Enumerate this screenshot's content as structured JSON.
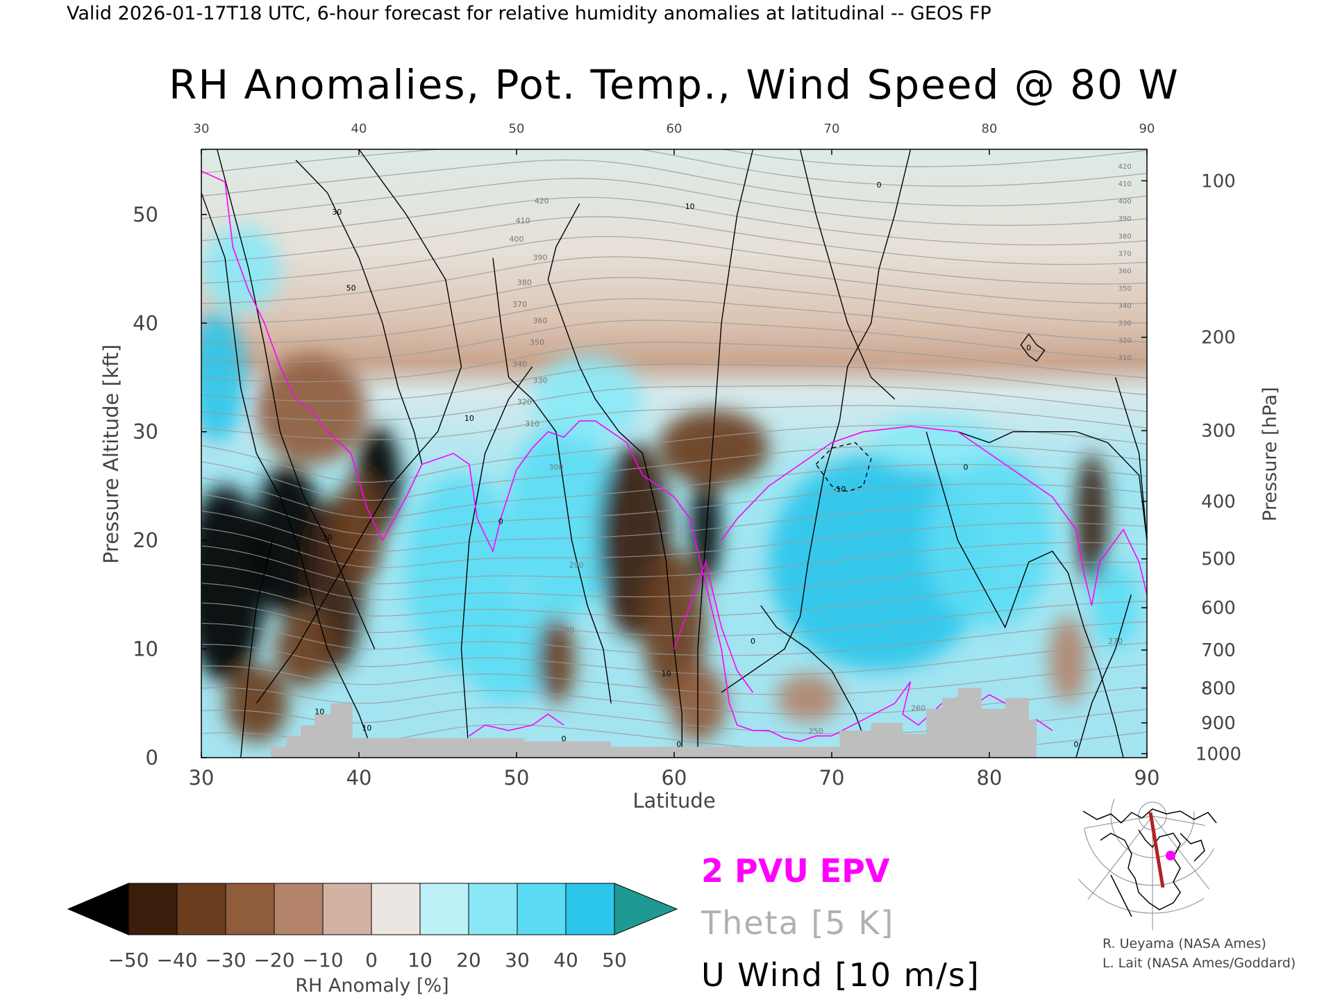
{
  "header": "Valid 2026-01-17T18 UTC, 6-hour forecast for relative humidity anomalies at latitudinal -- GEOS FP",
  "chart_data": {
    "type": "heatmap",
    "title": "RH Anomalies, Pot. Temp., Wind Speed @ 80 W",
    "xlabel": "Latitude",
    "ylabel_left": "Pressure Altitude [kft]",
    "ylabel_right": "Pressure [hPa]",
    "xlim": [
      30,
      90
    ],
    "ylim": [
      0,
      56
    ],
    "x_ticks": [
      "30",
      "40",
      "50",
      "60",
      "70",
      "80",
      "90"
    ],
    "y_ticks": [
      "0",
      "10",
      "20",
      "30",
      "40",
      "50"
    ],
    "y_tick_values": [
      0,
      10,
      20,
      30,
      40,
      50
    ],
    "pressure_ticks": [
      {
        "label": "100",
        "kft": 53.1
      },
      {
        "label": "200",
        "kft": 38.7
      },
      {
        "label": "300",
        "kft": 30.1
      },
      {
        "label": "400",
        "kft": 23.6
      },
      {
        "label": "500",
        "kft": 18.3
      },
      {
        "label": "600",
        "kft": 13.8
      },
      {
        "label": "700",
        "kft": 9.9
      },
      {
        "label": "800",
        "kft": 6.4
      },
      {
        "label": "900",
        "kft": 3.2
      },
      {
        "label": "1000",
        "kft": 0.36
      }
    ],
    "rh_blobs": [
      {
        "lat": 31.5,
        "kft": 16.0,
        "rlat": 2.6,
        "rk": 9.0,
        "v": -55
      },
      {
        "lat": 35.5,
        "kft": 20.0,
        "rlat": 2.2,
        "rk": 7.0,
        "v": -52
      },
      {
        "lat": 38.5,
        "kft": 16.0,
        "rlat": 1.8,
        "rk": 8.0,
        "v": -45
      },
      {
        "lat": 41.2,
        "kft": 25.5,
        "rlat": 1.4,
        "rk": 5.0,
        "v": -58
      },
      {
        "lat": 40.0,
        "kft": 21.0,
        "rlat": 1.6,
        "rk": 5.0,
        "v": -40
      },
      {
        "lat": 36.5,
        "kft": 10.0,
        "rlat": 1.8,
        "rk": 3.5,
        "v": -40
      },
      {
        "lat": 33.5,
        "kft": 5.0,
        "rlat": 2.0,
        "rk": 3.5,
        "v": -35
      },
      {
        "lat": 37.0,
        "kft": 32.0,
        "rlat": 3.5,
        "rk": 5.0,
        "v": -25
      },
      {
        "lat": 31.0,
        "kft": 35.0,
        "rlat": 1.8,
        "rk": 6.0,
        "v": 45
      },
      {
        "lat": 32.5,
        "kft": 45.0,
        "rlat": 2.5,
        "rk": 4.0,
        "v": 25
      },
      {
        "lat": 46.5,
        "kft": 17.0,
        "rlat": 3.5,
        "rk": 9.0,
        "v": 35
      },
      {
        "lat": 53.0,
        "kft": 22.0,
        "rlat": 3.5,
        "rk": 9.0,
        "v": 38
      },
      {
        "lat": 49.5,
        "kft": 10.0,
        "rlat": 3.0,
        "rk": 5.0,
        "v": 30
      },
      {
        "lat": 54.5,
        "kft": 33.0,
        "rlat": 3.5,
        "rk": 4.0,
        "v": 28
      },
      {
        "lat": 52.5,
        "kft": 9.0,
        "rlat": 1.2,
        "rk": 4.0,
        "v": -40
      },
      {
        "lat": 57.5,
        "kft": 20.0,
        "rlat": 2.3,
        "rk": 9.0,
        "v": -45
      },
      {
        "lat": 60.0,
        "kft": 12.0,
        "rlat": 2.0,
        "rk": 7.0,
        "v": -40
      },
      {
        "lat": 62.0,
        "kft": 21.0,
        "rlat": 0.9,
        "rk": 5.0,
        "v": -58
      },
      {
        "lat": 62.5,
        "kft": 28.5,
        "rlat": 3.5,
        "rk": 3.5,
        "v": -35
      },
      {
        "lat": 61.5,
        "kft": 5.0,
        "rlat": 1.8,
        "rk": 3.5,
        "v": -30
      },
      {
        "lat": 73.0,
        "kft": 18.0,
        "rlat": 7.0,
        "rk": 10.0,
        "v": 40
      },
      {
        "lat": 80.0,
        "kft": 20.0,
        "rlat": 4.0,
        "rk": 8.0,
        "v": 38
      },
      {
        "lat": 76.5,
        "kft": 29.0,
        "rlat": 4.0,
        "rk": 2.5,
        "v": 25
      },
      {
        "lat": 68.5,
        "kft": 5.5,
        "rlat": 2.0,
        "rk": 2.2,
        "v": -20
      },
      {
        "lat": 86.5,
        "kft": 22.0,
        "rlat": 1.0,
        "rk": 6.0,
        "v": -42
      },
      {
        "lat": 88.0,
        "kft": 14.0,
        "rlat": 1.5,
        "rk": 4.0,
        "v": 35
      },
      {
        "lat": 85.0,
        "kft": 9.0,
        "rlat": 1.2,
        "rk": 4.0,
        "v": -20
      }
    ],
    "terrain": [
      [
        30,
        0
      ],
      [
        34.4,
        0
      ],
      [
        34.4,
        1
      ],
      [
        35.4,
        1
      ],
      [
        35.4,
        2
      ],
      [
        36.3,
        2
      ],
      [
        36.3,
        3
      ],
      [
        37.2,
        3
      ],
      [
        37.2,
        4
      ],
      [
        38.2,
        4
      ],
      [
        38.2,
        5
      ],
      [
        39.6,
        5
      ],
      [
        39.6,
        1.8
      ],
      [
        50.5,
        1.8
      ],
      [
        50.5,
        1.5
      ],
      [
        56.0,
        1.5
      ],
      [
        56.0,
        1.0
      ],
      [
        70.5,
        1.0
      ],
      [
        70.5,
        2.5
      ],
      [
        72.5,
        2.5
      ],
      [
        72.5,
        3.2
      ],
      [
        74.5,
        3.2
      ],
      [
        74.5,
        2.2
      ],
      [
        76.0,
        2.2
      ],
      [
        76.0,
        4.5
      ],
      [
        77.0,
        4.5
      ],
      [
        77.0,
        5.5
      ],
      [
        78.0,
        5.5
      ],
      [
        78.0,
        6.4
      ],
      [
        79.5,
        6.4
      ],
      [
        79.5,
        4.5
      ],
      [
        81.0,
        4.5
      ],
      [
        81.0,
        5.5
      ],
      [
        82.5,
        5.5
      ],
      [
        82.5,
        3.5
      ],
      [
        83.0,
        3.5
      ],
      [
        83.0,
        0
      ],
      [
        90,
        0
      ]
    ],
    "theta_contour_labels": [
      {
        "text": "420",
        "lat": 51.6,
        "kft": 51.0
      },
      {
        "text": "410",
        "lat": 50.4,
        "kft": 49.2
      },
      {
        "text": "400",
        "lat": 50.0,
        "kft": 47.5
      },
      {
        "text": "390",
        "lat": 51.5,
        "kft": 45.8
      },
      {
        "text": "380",
        "lat": 50.5,
        "kft": 43.5
      },
      {
        "text": "370",
        "lat": 50.2,
        "kft": 41.5
      },
      {
        "text": "360",
        "lat": 51.5,
        "kft": 40.0
      },
      {
        "text": "350",
        "lat": 51.3,
        "kft": 38.0
      },
      {
        "text": "340",
        "lat": 50.2,
        "kft": 36.0
      },
      {
        "text": "330",
        "lat": 51.5,
        "kft": 34.5
      },
      {
        "text": "320",
        "lat": 50.5,
        "kft": 32.5
      },
      {
        "text": "310",
        "lat": 51.0,
        "kft": 30.5
      },
      {
        "text": "300",
        "lat": 52.5,
        "kft": 26.5
      },
      {
        "text": "290",
        "lat": 53.8,
        "kft": 17.5
      },
      {
        "text": "280",
        "lat": 53.2,
        "kft": 11.5
      },
      {
        "text": "270",
        "lat": 88.0,
        "kft": 10.5
      },
      {
        "text": "260",
        "lat": 75.5,
        "kft": 4.3
      },
      {
        "text": "250",
        "lat": 69.0,
        "kft": 2.2
      }
    ],
    "theta_right_labels": [
      "420",
      "410",
      "400",
      "390",
      "380",
      "370",
      "360",
      "350",
      "340",
      "330",
      "320",
      "310"
    ],
    "wind_contour_labels": [
      {
        "text": "30",
        "lat": 38.6,
        "kft": 50.0
      },
      {
        "text": "50",
        "lat": 39.5,
        "kft": 43.0
      },
      {
        "text": "30",
        "lat": 38.0,
        "kft": 20.0
      },
      {
        "text": "10",
        "lat": 37.5,
        "kft": 4.0
      },
      {
        "text": "10",
        "lat": 40.5,
        "kft": 2.5
      },
      {
        "text": "10",
        "lat": 47.0,
        "kft": 31.0
      },
      {
        "text": "0",
        "lat": 49.0,
        "kft": 21.5
      },
      {
        "text": "0",
        "lat": 53.0,
        "kft": 1.5
      },
      {
        "text": "10",
        "lat": 61.0,
        "kft": 50.5
      },
      {
        "text": "0",
        "lat": 73.0,
        "kft": 52.5
      },
      {
        "text": "0",
        "lat": 78.5,
        "kft": 26.5
      },
      {
        "text": "-10",
        "lat": 70.5,
        "kft": 24.5
      },
      {
        "text": "10",
        "lat": 59.5,
        "kft": 7.5
      },
      {
        "text": "0",
        "lat": 65.0,
        "kft": 10.5
      },
      {
        "text": "0",
        "lat": 82.5,
        "kft": 37.5
      },
      {
        "text": "0",
        "lat": 85.5,
        "kft": 1.0
      },
      {
        "text": "0",
        "lat": 60.3,
        "kft": 1.0
      }
    ],
    "legend": {
      "epv": "2 PVU EPV",
      "theta": "Theta [5 K]",
      "wind": "U Wind [10 m/s]",
      "epv_color": "#ff00ff",
      "theta_color": "#b0b0b0",
      "wind_color": "#000000"
    },
    "colorbar": {
      "label": "RH Anomaly [%]",
      "ticks": [
        "-50",
        "-40",
        "-30",
        "-20",
        "-10",
        "0",
        "10",
        "20",
        "30",
        "40",
        "50"
      ],
      "colors": [
        "#000000",
        "#3b1d0c",
        "#6b3d1f",
        "#8f5c3c",
        "#b3836a",
        "#d4b2a3",
        "#ebe6e2",
        "#bcf1f8",
        "#8ae8f6",
        "#5cdcf4",
        "#2bc6ea",
        "#0b8fb8",
        "#1f9a92"
      ]
    }
  },
  "credits": [
    "R. Ueyama (NASA Ames)",
    "L. Lait (NASA Ames/Goddard)"
  ],
  "inset_map": {
    "marker_color": "#ff00ff",
    "section_color": "#b22222"
  }
}
